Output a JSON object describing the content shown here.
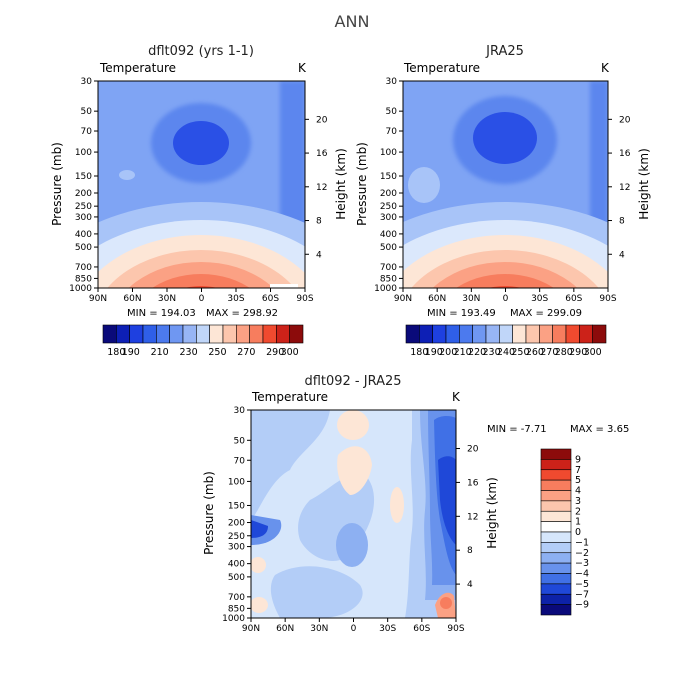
{
  "figure": {
    "title": "ANN"
  },
  "chart_data": [
    {
      "type": "heatmap",
      "title": "dflt092 (yrs 1-1)",
      "variable": "Temperature",
      "units": "K",
      "ylabel": "Pressure (mb)",
      "ylabel_right": "Height (km)",
      "x_ticks": [
        "90N",
        "60N",
        "30N",
        "0",
        "30S",
        "60S",
        "90S"
      ],
      "y_ticks": [
        30,
        50,
        70,
        100,
        150,
        200,
        250,
        300,
        400,
        500,
        700,
        850,
        1000
      ],
      "y_ticks_right": [
        4,
        8,
        12,
        16,
        20
      ],
      "min_label": "MIN = 194.03",
      "max_label": "MAX = 298.92",
      "colorbar_levels": [
        180,
        190,
        200,
        210,
        220,
        230,
        240,
        250,
        260,
        270,
        280,
        290,
        300
      ],
      "colorbar_labels": [
        "180",
        "190",
        "210",
        "230",
        "250",
        "270",
        "290",
        "300"
      ],
      "colorbar_colors": [
        "#0a0a7a",
        "#0d1fb5",
        "#1e40e0",
        "#2f5fe8",
        "#4c7aee",
        "#6f97f2",
        "#97b5f5",
        "#c0d6f9",
        "#fde6d6",
        "#fcc6ad",
        "#fba184",
        "#f77d5e",
        "#f04a2f",
        "#cc2219",
        "#8c0b0b"
      ]
    },
    {
      "type": "heatmap",
      "title": "JRA25",
      "variable": "Temperature",
      "units": "K",
      "ylabel": "Pressure (mb)",
      "ylabel_right": "Height (km)",
      "x_ticks": [
        "90N",
        "60N",
        "30N",
        "0",
        "30S",
        "60S",
        "90S"
      ],
      "y_ticks": [
        30,
        50,
        70,
        100,
        150,
        200,
        250,
        300,
        400,
        500,
        700,
        850,
        1000
      ],
      "y_ticks_right": [
        4,
        8,
        12,
        16,
        20
      ],
      "min_label": "MIN = 193.49",
      "max_label": "MAX = 299.09",
      "colorbar_levels": [
        180,
        190,
        200,
        210,
        220,
        230,
        240,
        250,
        260,
        270,
        280,
        290,
        300
      ],
      "colorbar_labels": [
        "180",
        "190",
        "200",
        "210",
        "220",
        "230",
        "240",
        "250",
        "260",
        "270",
        "280",
        "290",
        "300"
      ],
      "colorbar_colors": [
        "#0a0a7a",
        "#0d1fb5",
        "#1e40e0",
        "#2f5fe8",
        "#4c7aee",
        "#6f97f2",
        "#97b5f5",
        "#c0d6f9",
        "#fde6d6",
        "#fcc6ad",
        "#fba184",
        "#f77d5e",
        "#f04a2f",
        "#cc2219",
        "#8c0b0b"
      ]
    },
    {
      "type": "heatmap",
      "title": "dflt092 - JRA25",
      "variable": "Temperature",
      "units": "K",
      "ylabel": "Pressure (mb)",
      "ylabel_right": "Height (km)",
      "x_ticks": [
        "90N",
        "60N",
        "30N",
        "0",
        "30S",
        "60S",
        "90S"
      ],
      "y_ticks": [
        30,
        50,
        70,
        100,
        150,
        200,
        250,
        300,
        400,
        500,
        700,
        850,
        1000
      ],
      "y_ticks_right": [
        4,
        8,
        12,
        16,
        20
      ],
      "min_label": "MIN = -7.71",
      "max_label": "MAX = 3.65",
      "colorbar_labels": [
        "9",
        "7",
        "5",
        "4",
        "3",
        "2",
        "1",
        "0",
        "−1",
        "−2",
        "−3",
        "−4",
        "−5",
        "−7",
        "−9"
      ],
      "colorbar_colors": [
        "#8c0b0b",
        "#cc2219",
        "#f04a2f",
        "#f77d5e",
        "#fba184",
        "#fcc6ad",
        "#fde6d6",
        "#ffffff",
        "#d6e6fb",
        "#b3cdf7",
        "#8db0f2",
        "#6892ec",
        "#4070e6",
        "#1f48d8",
        "#0d22a8",
        "#0a0a7a"
      ]
    }
  ]
}
